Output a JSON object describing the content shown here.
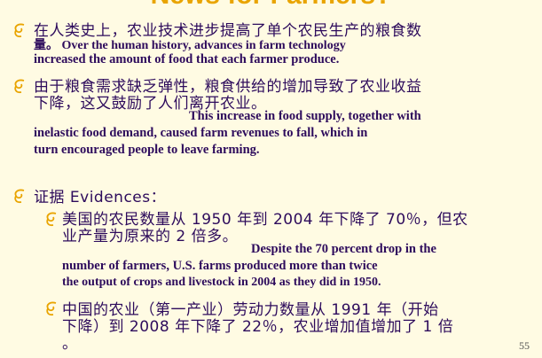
{
  "title": "News for Farmers?",
  "bullets": [
    {
      "lines": [
        "在人类史上，农业技术进步提高了单个农民生产的粮食数",
        "量。 Over the human history, advances in farm technology",
        "increased the amount of food that each farmer produce."
      ]
    },
    {
      "lines": [
        "由于粮食需求缺乏弹性，粮食供给的增加导致了农业收益",
        "下降，这又鼓励了人们离开农业。",
        "This increase in food supply, together with",
        "inelastic food demand, caused farm revenues to fall, which in",
        "turn encouraged people to leave farming."
      ]
    },
    {
      "lines": [
        "证据 Evidences："
      ],
      "subs": [
        {
          "lines": [
            "美国的农民数量从 1950 年到 2004 年下降了 70％，但农",
            "业产量为原来的 2 倍多。",
            "Despite the 70 percent drop in the",
            "number of farmers, U.S. farms produced more than twice",
            "the output of crops and livestock in 2004 as they did in 1950."
          ]
        },
        {
          "lines": [
            "中国的农业（第一产业）劳动力数量从 1991 年（开始",
            "下降）到 2008 年下降了 22％，农业增加值增加了 1 倍",
            "。"
          ]
        }
      ]
    }
  ],
  "page_number": "55"
}
